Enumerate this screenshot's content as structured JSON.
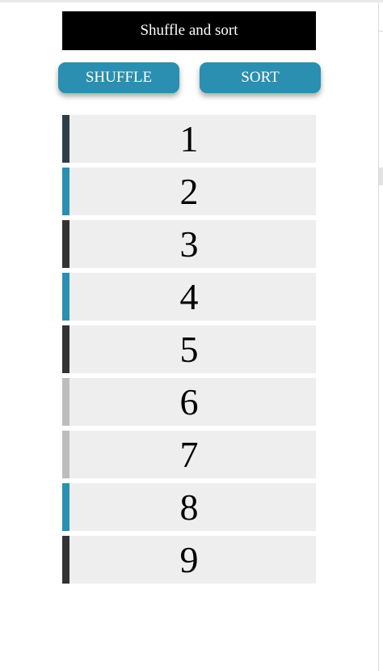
{
  "header": {
    "title": "Shuffle and sort"
  },
  "toolbar": {
    "shuffle_label": "SHUFFLE",
    "sort_label": "SORT"
  },
  "colors": {
    "button": "#2a8fb0",
    "title_bg": "#000000",
    "item_bg": "#eeeeee"
  },
  "items": [
    {
      "label": "1",
      "accent": "#2d3e46"
    },
    {
      "label": "2",
      "accent": "#2a8fb0"
    },
    {
      "label": "3",
      "accent": "#333333"
    },
    {
      "label": "4",
      "accent": "#2a8fb0"
    },
    {
      "label": "5",
      "accent": "#333333"
    },
    {
      "label": "6",
      "accent": "#bdbdbd"
    },
    {
      "label": "7",
      "accent": "#bdbdbd"
    },
    {
      "label": "8",
      "accent": "#2a8fb0"
    },
    {
      "label": "9",
      "accent": "#333333"
    }
  ]
}
